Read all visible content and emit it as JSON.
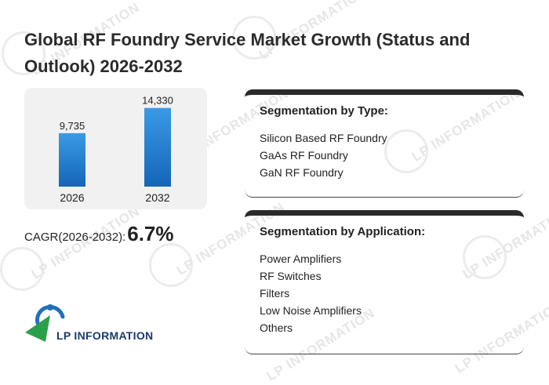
{
  "title": "Global RF Foundry Service Market Growth (Status and Outlook) 2026-2032",
  "chart_data": {
    "type": "bar",
    "categories": [
      "2026",
      "2032"
    ],
    "values": [
      9735,
      14330
    ],
    "value_labels": [
      "9,735",
      "14,330"
    ],
    "title": "",
    "xlabel": "",
    "ylabel": "",
    "ylim": [
      0,
      16000
    ]
  },
  "colors": {
    "bar_top": "#3a9ae6",
    "bar_bottom": "#1565b8",
    "panel": "#f1f1f1"
  },
  "cagr": {
    "label": "CAGR(2026-2032):",
    "value": "6.7%"
  },
  "segmentation_type": {
    "title": "Segmentation by Type:",
    "items": [
      "Silicon Based RF Foundry",
      "GaAs RF Foundry",
      "GaN RF Foundry"
    ]
  },
  "segmentation_application": {
    "title": "Segmentation by Application:",
    "items": [
      "Power Amplifiers",
      "RF Switches",
      "Filters",
      "Low Noise Amplifiers",
      "Others"
    ]
  },
  "logo": {
    "text": "LP INFORMATION"
  },
  "watermark": {
    "text": "LP INFORMATION"
  }
}
